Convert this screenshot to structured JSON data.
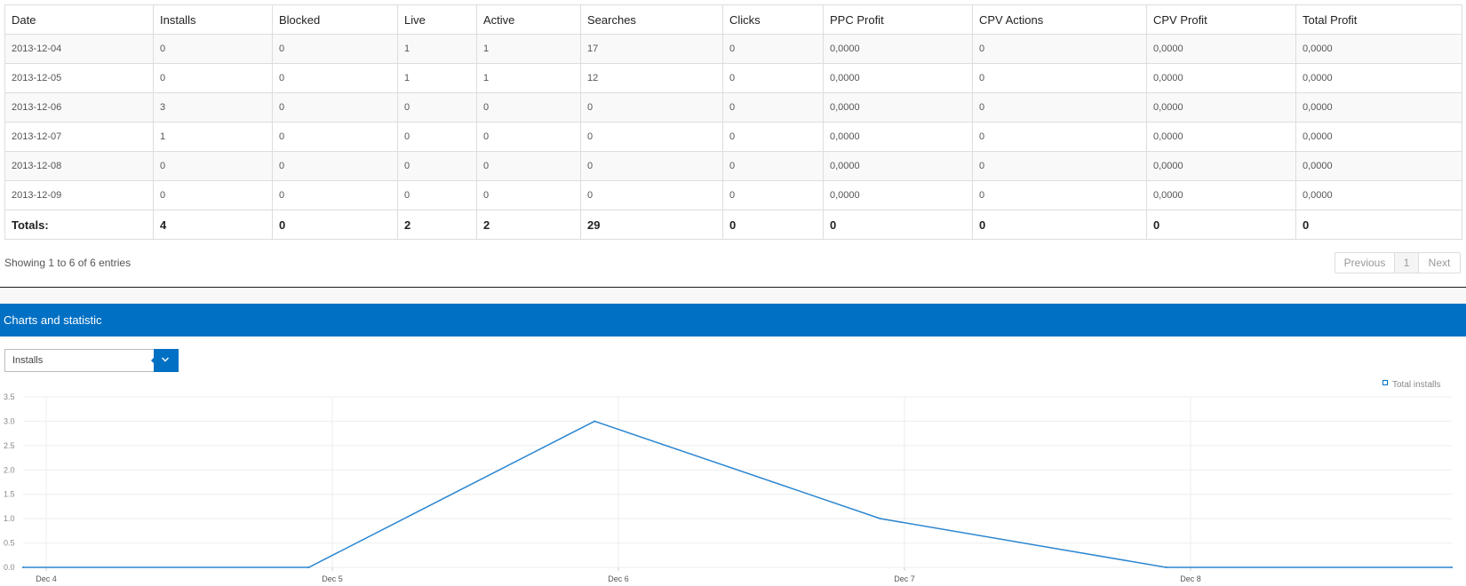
{
  "table": {
    "columns": [
      "Date",
      "Installs",
      "Blocked",
      "Live",
      "Active",
      "Searches",
      "Clicks",
      "PPC Profit",
      "CPV Actions",
      "CPV Profit",
      "Total Profit"
    ],
    "rows": [
      [
        "2013-12-04",
        "0",
        "0",
        "1",
        "1",
        "17",
        "0",
        "0,0000",
        "0",
        "0,0000",
        "0,0000"
      ],
      [
        "2013-12-05",
        "0",
        "0",
        "1",
        "1",
        "12",
        "0",
        "0,0000",
        "0",
        "0,0000",
        "0,0000"
      ],
      [
        "2013-12-06",
        "3",
        "0",
        "0",
        "0",
        "0",
        "0",
        "0,0000",
        "0",
        "0,0000",
        "0,0000"
      ],
      [
        "2013-12-07",
        "1",
        "0",
        "0",
        "0",
        "0",
        "0",
        "0,0000",
        "0",
        "0,0000",
        "0,0000"
      ],
      [
        "2013-12-08",
        "0",
        "0",
        "0",
        "0",
        "0",
        "0",
        "0,0000",
        "0",
        "0,0000",
        "0,0000"
      ],
      [
        "2013-12-09",
        "0",
        "0",
        "0",
        "0",
        "0",
        "0",
        "0,0000",
        "0",
        "0,0000",
        "0,0000"
      ]
    ],
    "totals": [
      "Totals:",
      "4",
      "0",
      "2",
      "2",
      "29",
      "0",
      "0",
      "0",
      "0",
      "0"
    ]
  },
  "pagination": {
    "info": "Showing 1 to 6 of 6 entries",
    "previous_label": "Previous",
    "current_page": "1",
    "next_label": "Next"
  },
  "section": {
    "title": "Charts and statistic"
  },
  "metric_select": {
    "value": "Installs",
    "dropdown_icon": "chevron-down-icon"
  },
  "colors": {
    "accent": "#0070c4",
    "line": "#2b86d0",
    "grid": "#eeeeee"
  },
  "chart_data": {
    "type": "line",
    "x": [
      "2013-12-04",
      "2013-12-05",
      "2013-12-06",
      "2013-12-07",
      "2013-12-08",
      "2013-12-09"
    ],
    "x_tick_labels": [
      "Dec 4",
      "Dec 5",
      "Dec 6",
      "Dec 7",
      "Dec 8"
    ],
    "series": [
      {
        "name": "Total installs",
        "values": [
          0,
          0,
          3,
          1,
          0,
          0
        ]
      }
    ],
    "y_ticks": [
      "0.0",
      "0.5",
      "1.0",
      "1.5",
      "2.0",
      "2.5",
      "3.0",
      "3.5"
    ],
    "ylim": [
      0,
      3.5
    ],
    "grid": true,
    "legend_position": "top-right"
  }
}
